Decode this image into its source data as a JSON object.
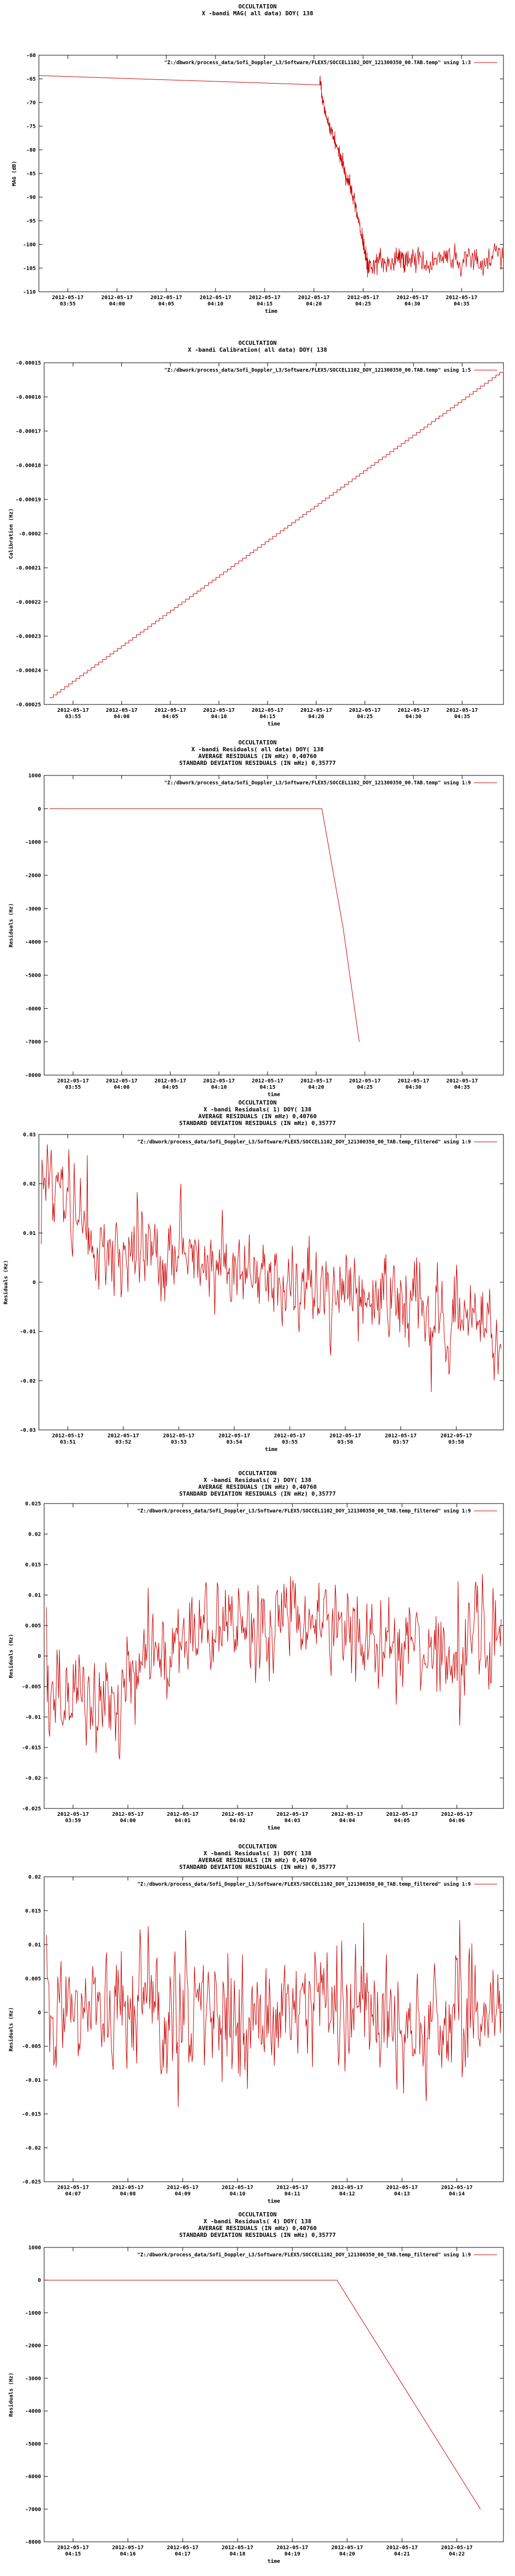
{
  "colors": {
    "series": "#cc0000",
    "axis": "#000000",
    "background": "#ffffff"
  },
  "chart_data": [
    {
      "type": "line",
      "title_lines": [
        "OCCULTATION",
        "X -bandi MAG( all data) DOY( 138"
      ],
      "legend": "\"Z:/dbwork/process_data/Sofi_Doppler_L3/Software/FLEX5/SOCCEL1102_DOY_121300350_00.TAB.temp\" using 1:3",
      "legend_position": "top-right",
      "xlabel": "time",
      "ylabel": "MAG (dB)",
      "ylim": [
        -110,
        -60
      ],
      "yticks": [
        "-60",
        "-65",
        "-70",
        "-75",
        "-80",
        "-85",
        "-90",
        "-95",
        "-100",
        "-105",
        "-110"
      ],
      "xticks": [
        [
          "2012-05-17",
          "03:55"
        ],
        [
          "2012-05-17",
          "04:00"
        ],
        [
          "2012-05-17",
          "04:05"
        ],
        [
          "2012-05-17",
          "04:10"
        ],
        [
          "2012-05-17",
          "04:15"
        ],
        [
          "2012-05-17",
          "04:20"
        ],
        [
          "2012-05-17",
          "04:25"
        ],
        [
          "2012-05-17",
          "04:30"
        ],
        [
          "2012-05-17",
          "04:35"
        ]
      ],
      "x_note": "x values are minutes after 03:55 on 2012-05-17",
      "xrange": [
        0,
        43
      ],
      "series_points": [
        [
          0,
          -64.3
        ],
        [
          26.0,
          -64.3
        ],
        [
          26.3,
          -70
        ],
        [
          26.8,
          -74
        ],
        [
          27.2,
          -77
        ],
        [
          27.7,
          -80
        ],
        [
          28.0,
          -82
        ],
        [
          28.4,
          -85
        ],
        [
          28.8,
          -88
        ],
        [
          29.2,
          -91
        ],
        [
          29.6,
          -95
        ],
        [
          30.0,
          -100
        ],
        [
          30.3,
          -103
        ],
        [
          30.6,
          -105
        ],
        [
          31.5,
          -103
        ],
        [
          32.5,
          -105
        ],
        [
          33.3,
          -102
        ],
        [
          34.0,
          -104
        ],
        [
          35.0,
          -102.5
        ],
        [
          36.0,
          -105
        ],
        [
          37.0,
          -103
        ],
        [
          38.0,
          -101.5
        ],
        [
          39.0,
          -104
        ],
        [
          40.0,
          -102
        ],
        [
          41.0,
          -104.5
        ],
        [
          42.0,
          -102
        ],
        [
          43.0,
          -103
        ]
      ]
    },
    {
      "type": "line",
      "title_lines": [
        "OCCULTATION",
        "X -bandi Calibration( all data) DOY( 138"
      ],
      "legend": "\"Z:/dbwork/process_data/Sofi_Doppler_L3/Software/FLEX5/SOCCEL1102_DOY_121300350_00.TAB.temp\" using 1:5",
      "legend_position": "top-right",
      "xlabel": "time",
      "ylabel": "Calibration (Hz)",
      "ylim": [
        -0.00025,
        -0.00015
      ],
      "yticks": [
        "-0.00015",
        "-0.00016",
        "-0.00017",
        "-0.00018",
        "-0.00019",
        "-0.0002",
        "-0.00021",
        "-0.00022",
        "-0.00023",
        "-0.00024",
        "-0.00025"
      ],
      "xticks": [
        [
          "2012-05-17",
          "03:55"
        ],
        [
          "2012-05-17",
          "04:00"
        ],
        [
          "2012-05-17",
          "04:05"
        ],
        [
          "2012-05-17",
          "04:10"
        ],
        [
          "2012-05-17",
          "04:15"
        ],
        [
          "2012-05-17",
          "04:20"
        ],
        [
          "2012-05-17",
          "04:25"
        ],
        [
          "2012-05-17",
          "04:30"
        ],
        [
          "2012-05-17",
          "04:35"
        ]
      ],
      "xrange": [
        0,
        43
      ],
      "series_points": [
        [
          0.5,
          -0.000248
        ],
        [
          43,
          -0.000152
        ]
      ]
    },
    {
      "type": "line",
      "title_lines": [
        "OCCULTATION",
        "X -bandi Residuals( all data) DOY( 138",
        "AVERAGE RESIDUALS (IN mHz) 0,40760",
        "STANDARD DEVIATION RESIDUALS (IN mHz) 0,35777"
      ],
      "legend": "\"Z:/dbwork/process_data/Sofi_Doppler_L3/Software/FLEX5/SOCCEL1102_DOY_121300350_00.TAB.temp\" using 1:9",
      "legend_position": "top-right",
      "xlabel": "time",
      "ylabel": "Residuals (Hz)",
      "ylim": [
        -8000,
        1000
      ],
      "yticks": [
        "1000",
        "0",
        "-1000",
        "-2000",
        "-3000",
        "-4000",
        "-5000",
        "-6000",
        "-7000",
        "-8000"
      ],
      "xticks": [
        [
          "2012-05-17",
          "03:55"
        ],
        [
          "2012-05-17",
          "04:00"
        ],
        [
          "2012-05-17",
          "04:05"
        ],
        [
          "2012-05-17",
          "04:10"
        ],
        [
          "2012-05-17",
          "04:15"
        ],
        [
          "2012-05-17",
          "04:20"
        ],
        [
          "2012-05-17",
          "04:25"
        ],
        [
          "2012-05-17",
          "04:30"
        ],
        [
          "2012-05-17",
          "04:35"
        ]
      ],
      "xrange": [
        0,
        43
      ],
      "series_points": [
        [
          0.5,
          0
        ],
        [
          26.0,
          0
        ],
        [
          28.0,
          -3600
        ],
        [
          29.5,
          -7000
        ]
      ]
    },
    {
      "type": "line",
      "title_lines": [
        "OCCULTATION",
        "X -bandi Residuals( 1) DOY( 138",
        "AVERAGE RESIDUALS (IN mHz) 0,40760",
        "STANDARD DEVIATION RESIDUALS (IN mHz) 0,35777"
      ],
      "legend": "\"Z:/dbwork/process_data/Sofi_Doppler_L3/Software/FLEX5/SOCCEL1102_DOY_121300350_00_TAB.temp_filtered\" using 1:9",
      "legend_position": "top-right",
      "xlabel": "time",
      "ylabel": "Residuals (Hz)",
      "ylim": [
        -0.03,
        0.03
      ],
      "yticks": [
        "0.03",
        "0.02",
        "0.01",
        "0",
        "-0.01",
        "-0.02",
        "-0.03"
      ],
      "xticks": [
        [
          "2012-05-17",
          "03:51"
        ],
        [
          "2012-05-17",
          "03:52"
        ],
        [
          "2012-05-17",
          "03:53"
        ],
        [
          "2012-05-17",
          "03:54"
        ],
        [
          "2012-05-17",
          "03:55"
        ],
        [
          "2012-05-17",
          "03:56"
        ],
        [
          "2012-05-17",
          "03:57"
        ],
        [
          "2012-05-17",
          "03:58"
        ]
      ],
      "xrange": [
        50.6,
        58.5
      ],
      "series": {
        "count": 600,
        "seed": 11,
        "sigma": 0.0065,
        "drift": [
          0.025,
          0.005,
          0.005,
          0.003,
          0.0,
          -0.003,
          -0.006,
          -0.01
        ]
      }
    },
    {
      "type": "line",
      "title_lines": [
        "OCCULTATION",
        "X -bandi Residuals( 2) DOY( 138",
        "AVERAGE RESIDUALS (IN mHz) 0,40760",
        "STANDARD DEVIATION RESIDUALS (IN mHz) 0,35777"
      ],
      "legend": "\"Z:/dbwork/process_data/Sofi_Doppler_L3/Software/FLEX5/SOCCEL1102_DOY_121300350_00_TAB.temp_filtered\" using 1:9",
      "legend_position": "top-right",
      "xlabel": "time",
      "ylabel": "Residuals (Hz)",
      "ylim": [
        -0.025,
        0.025
      ],
      "yticks": [
        "0.025",
        "0.02",
        "0.015",
        "0.01",
        "0.005",
        "0",
        "-0.005",
        "-0.01",
        "-0.015",
        "-0.02",
        "-0.025"
      ],
      "xticks": [
        [
          "2012-05-17",
          "03:59"
        ],
        [
          "2012-05-17",
          "04:00"
        ],
        [
          "2012-05-17",
          "04:01"
        ],
        [
          "2012-05-17",
          "04:02"
        ],
        [
          "2012-05-17",
          "04:03"
        ],
        [
          "2012-05-17",
          "04:04"
        ],
        [
          "2012-05-17",
          "04:05"
        ],
        [
          "2012-05-17",
          "04:06"
        ]
      ],
      "xrange": [
        58.5,
        66.5
      ],
      "series": {
        "count": 560,
        "seed": 23,
        "sigma": 0.006,
        "drift": [
          -0.008,
          -0.006,
          0.003,
          0.005,
          0.006,
          0.004,
          0.002,
          0.003
        ]
      }
    },
    {
      "type": "line",
      "title_lines": [
        "OCCULTATION",
        "X -bandi Residuals( 3) DOY( 138",
        "AVERAGE RESIDUALS (IN mHz) 0,40760",
        "STANDARD DEVIATION RESIDUALS (IN mHz) 0,35777"
      ],
      "legend": "\"Z:/dbwork/process_data/Sofi_Doppler_L3/Software/FLEX5/SOCCEL1102_DOY_121300350_00_TAB.temp_filtered\" using 1:9",
      "legend_position": "top-right",
      "xlabel": "time",
      "ylabel": "Residuals (Hz)",
      "ylim": [
        -0.025,
        0.02
      ],
      "yticks": [
        "0.02",
        "0.015",
        "0.01",
        "0.005",
        "0",
        "-0.005",
        "-0.01",
        "-0.015",
        "-0.02",
        "-0.025"
      ],
      "xticks": [
        [
          "2012-05-17",
          "04:07"
        ],
        [
          "2012-05-17",
          "04:08"
        ],
        [
          "2012-05-17",
          "04:09"
        ],
        [
          "2012-05-17",
          "04:10"
        ],
        [
          "2012-05-17",
          "04:11"
        ],
        [
          "2012-05-17",
          "04:12"
        ],
        [
          "2012-05-17",
          "04:13"
        ],
        [
          "2012-05-17",
          "04:14"
        ]
      ],
      "xrange": [
        66.5,
        74.5
      ],
      "series": {
        "count": 560,
        "seed": 37,
        "sigma": 0.0065,
        "drift": [
          0.0,
          0.001,
          0.0,
          -0.002,
          0.001,
          0.0,
          -0.004,
          0.002
        ]
      }
    },
    {
      "type": "line",
      "title_lines": [
        "OCCULTATION",
        "X -bandi Residuals( 4) DOY( 138",
        "AVERAGE RESIDUALS (IN mHz) 0,40760",
        "STANDARD DEVIATION RESIDUALS (IN mHz) 0,35777"
      ],
      "legend": "\"Z:/dbwork/process_data/Sofi_Doppler_L3/Software/FLEX5/SOCCEL1102_DOY_121300350_00_TAB.temp_filtered\" using 1:9",
      "legend_position": "top-right",
      "xlabel": "time",
      "ylabel": "Residuals (Hz)",
      "ylim": [
        -8000,
        1000
      ],
      "yticks": [
        "1000",
        "0",
        "-1000",
        "-2000",
        "-3000",
        "-4000",
        "-5000",
        "-6000",
        "-7000",
        "-8000"
      ],
      "xticks": [
        [
          "2012-05-17",
          "04:15"
        ],
        [
          "2012-05-17",
          "04:16"
        ],
        [
          "2012-05-17",
          "04:17"
        ],
        [
          "2012-05-17",
          "04:18"
        ],
        [
          "2012-05-17",
          "04:19"
        ],
        [
          "2012-05-17",
          "04:20"
        ],
        [
          "2012-05-17",
          "04:21"
        ],
        [
          "2012-05-17",
          "04:22"
        ]
      ],
      "xrange": [
        74.5,
        82.5
      ],
      "series_points": [
        [
          74.5,
          0
        ],
        [
          79.6,
          0
        ],
        [
          82.1,
          -7000
        ]
      ]
    }
  ]
}
